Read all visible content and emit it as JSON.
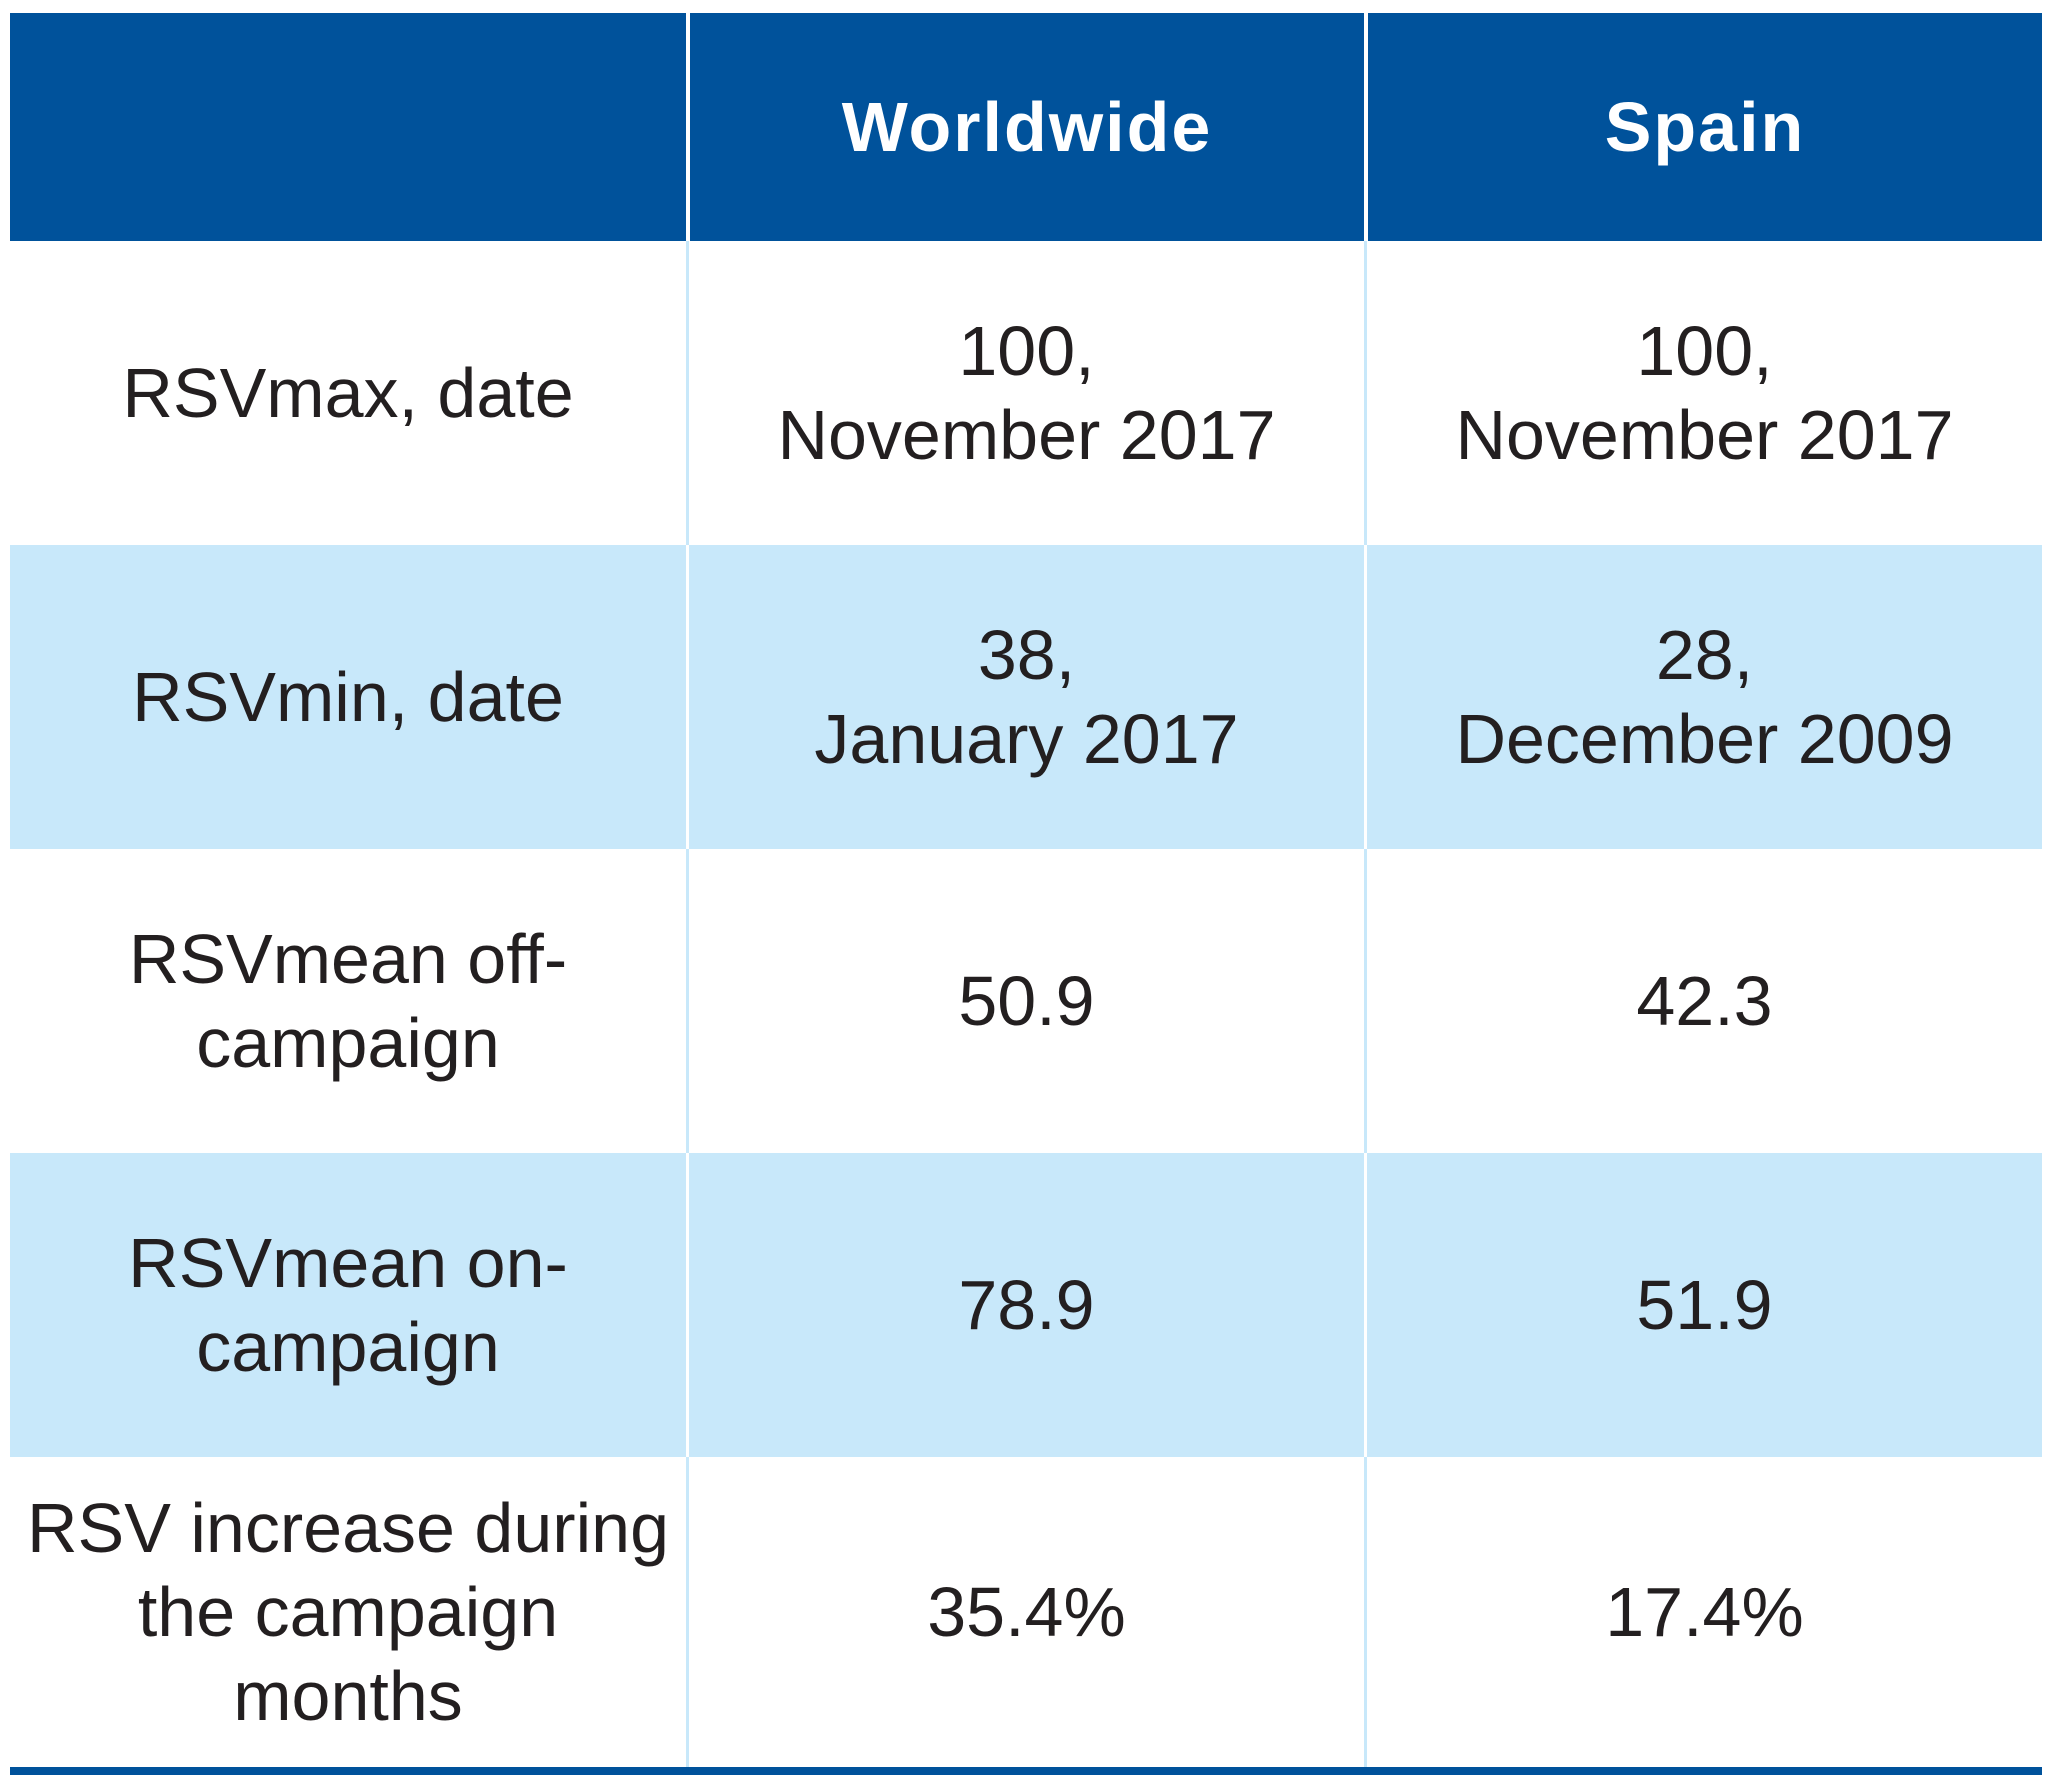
{
  "header": {
    "empty": "",
    "col1": "Worldwide",
    "col2": "Spain"
  },
  "rows": [
    {
      "label": "RSVmax, date",
      "worldwide": "100,\nNovember 2017",
      "spain": "100,\nNovember 2017"
    },
    {
      "label": "RSVmin, date",
      "worldwide": "38,\nJanuary 2017",
      "spain": "28,\nDecember 2009"
    },
    {
      "label": "RSVmean off-\ncampaign",
      "worldwide": "50.9",
      "spain": "42.3"
    },
    {
      "label": "RSVmean on-\ncampaign",
      "worldwide": "78.9",
      "spain": "51.9"
    },
    {
      "label": "RSV increase during\nthe campaign\nmonths",
      "worldwide": "35.4%",
      "spain": "17.4%"
    }
  ],
  "colors": {
    "header_bg": "#00529b",
    "shaded_bg": "#c8e8fa",
    "text": "#231f20"
  }
}
